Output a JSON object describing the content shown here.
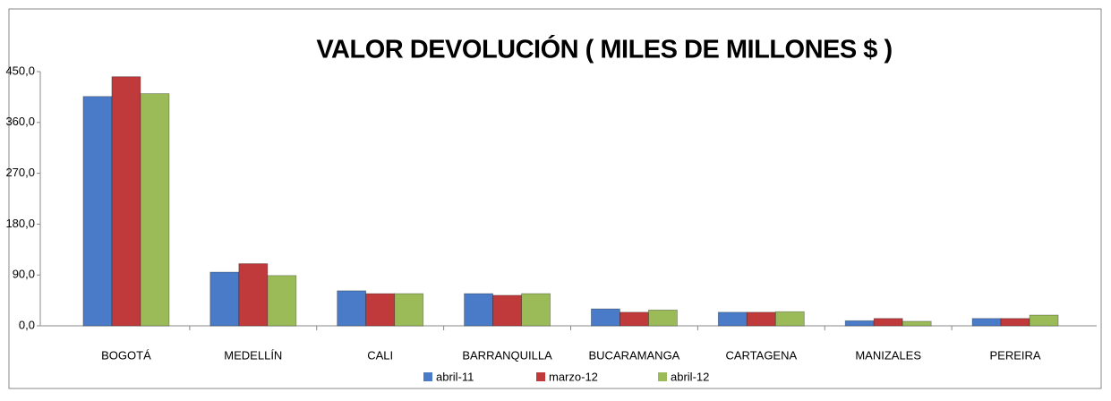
{
  "chart_data": {
    "type": "bar",
    "title": "VALOR DEVOLUCIÓN ( MILES DE MILLONES $ )",
    "categories": [
      "BOGOTÁ",
      "MEDELLÍN",
      "CALI",
      "BARRANQUILLA",
      "BUCARAMANGA",
      "CARTAGENA",
      "MANIZALES",
      "PEREIRA"
    ],
    "series": [
      {
        "name": "abril-11",
        "color": "#4a7bc8",
        "values": [
          406,
          95,
          62,
          57,
          30,
          24,
          9,
          13
        ]
      },
      {
        "name": "marzo-12",
        "color": "#c0393b",
        "values": [
          441,
          110,
          57,
          54,
          24,
          24,
          13,
          13
        ]
      },
      {
        "name": "abril-12",
        "color": "#9bbb59",
        "values": [
          411,
          89,
          57,
          57,
          28,
          25,
          8,
          19
        ]
      }
    ],
    "ylim": [
      0,
      450
    ],
    "yticks": [
      {
        "value": 0,
        "label": "0,0"
      },
      {
        "value": 90,
        "label": "90,0"
      },
      {
        "value": 180,
        "label": "180,0"
      },
      {
        "value": 270,
        "label": "270,0"
      },
      {
        "value": 360,
        "label": "360,0"
      },
      {
        "value": 450,
        "label": "450,0"
      }
    ],
    "grid": false,
    "legend": "bottom"
  }
}
